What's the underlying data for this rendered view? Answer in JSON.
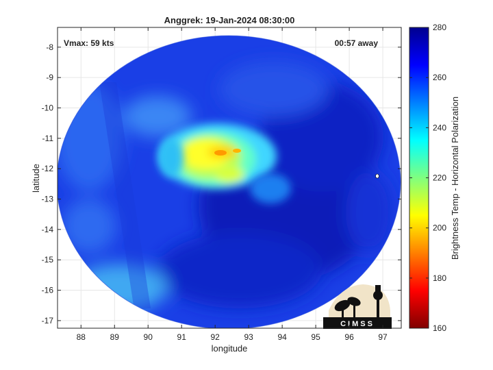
{
  "chart_data": {
    "type": "heatmap",
    "title": "Anggrek: 19-Jan-2024 08:30:00",
    "xlabel": "longitude",
    "ylabel": "latitude",
    "xlim": [
      87.3,
      97.55
    ],
    "ylim": [
      -17.25,
      -7.35
    ],
    "x_ticks": [
      88,
      89,
      90,
      91,
      92,
      93,
      94,
      95,
      96,
      97
    ],
    "y_ticks": [
      -8,
      -9,
      -10,
      -11,
      -12,
      -13,
      -14,
      -15,
      -16,
      -17
    ],
    "x_tick_labels": [
      "88",
      "89",
      "90",
      "91",
      "92",
      "93",
      "94",
      "95",
      "96",
      "97"
    ],
    "y_tick_labels": [
      "-8",
      "-9",
      "-10",
      "-11",
      "-12",
      "-13",
      "-14",
      "-15",
      "-16",
      "-17"
    ],
    "grid": true,
    "annotations": {
      "vmax": "Vmax: 59 kts",
      "time_offset": "00:57 away"
    },
    "colorbar": {
      "label": "Brightness Temp - Horizontal Polarization",
      "range": [
        160,
        280
      ],
      "ticks": [
        280,
        260,
        240,
        220,
        200,
        180,
        160
      ],
      "tick_labels": [
        "280",
        "260",
        "240",
        "220",
        "200",
        "180",
        "160"
      ],
      "colormap": "jet"
    },
    "swath_center": [
      92.3,
      -12.1
    ],
    "convective_core": {
      "center": [
        92.2,
        -11.6
      ],
      "min_value": 195
    },
    "background_value": 265
  },
  "logo": {
    "text": "CIMSS"
  },
  "colors": {
    "jet_stops": [
      "#00008f",
      "#0000ff",
      "#00ffff",
      "#ffff00",
      "#ff0000",
      "#800000"
    ],
    "grid": "#e6e6e6",
    "axis": "#262626"
  }
}
